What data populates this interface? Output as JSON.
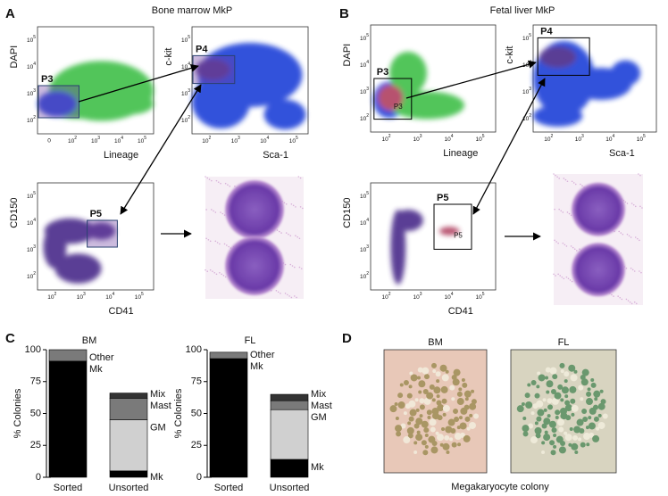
{
  "flow_panels": [
    {
      "letter": "A",
      "title": "Bone marrow MkP",
      "plots": [
        {
          "x_label": "Lineage",
          "y_label": "DAPI",
          "gate": "P3",
          "x_ticks": [
            {
              "text": "0"
            },
            {
              "base": "10",
              "exp": "2"
            },
            {
              "base": "10",
              "exp": "3"
            },
            {
              "base": "10",
              "exp": "4"
            },
            {
              "base": "10",
              "exp": "5"
            }
          ],
          "y_ticks": [
            {
              "base": "10",
              "exp": "2"
            },
            {
              "base": "10",
              "exp": "3"
            },
            {
              "base": "10",
              "exp": "4"
            },
            {
              "base": "10",
              "exp": "5"
            }
          ]
        },
        {
          "x_label": "Sca-1",
          "y_label": "c-kit",
          "gate": "P4",
          "x_ticks": [
            {
              "base": "10",
              "exp": "2"
            },
            {
              "base": "10",
              "exp": "3"
            },
            {
              "base": "10",
              "exp": "4"
            },
            {
              "base": "10",
              "exp": "5"
            }
          ],
          "y_ticks": [
            {
              "base": "10",
              "exp": "2"
            },
            {
              "base": "10",
              "exp": "3"
            },
            {
              "base": "10",
              "exp": "4"
            },
            {
              "base": "10",
              "exp": "5"
            }
          ]
        },
        {
          "x_label": "CD41",
          "y_label": "CD150",
          "gate": "P5",
          "x_ticks": [
            {
              "base": "10",
              "exp": "2"
            },
            {
              "base": "10",
              "exp": "3"
            },
            {
              "base": "10",
              "exp": "4"
            },
            {
              "base": "10",
              "exp": "5"
            }
          ],
          "y_ticks": [
            {
              "base": "10",
              "exp": "2"
            },
            {
              "base": "10",
              "exp": "3"
            },
            {
              "base": "10",
              "exp": "4"
            },
            {
              "base": "10",
              "exp": "5"
            }
          ]
        }
      ]
    },
    {
      "letter": "B",
      "title": "Fetal liver MkP",
      "plots": [
        {
          "x_label": "Lineage",
          "y_label": "DAPI",
          "gate": "P3",
          "inner_label": "P3",
          "x_ticks": [
            {
              "base": "10",
              "exp": "2"
            },
            {
              "base": "10",
              "exp": "3"
            },
            {
              "base": "10",
              "exp": "4"
            },
            {
              "base": "10",
              "exp": "5"
            }
          ],
          "y_ticks": [
            {
              "base": "10",
              "exp": "2"
            },
            {
              "base": "10",
              "exp": "3"
            },
            {
              "base": "10",
              "exp": "4"
            },
            {
              "base": "10",
              "exp": "5"
            }
          ]
        },
        {
          "x_label": "Sca-1",
          "y_label": "c-kit",
          "gate": "P4",
          "x_ticks": [
            {
              "base": "10",
              "exp": "2"
            },
            {
              "base": "10",
              "exp": "3"
            },
            {
              "base": "10",
              "exp": "4"
            },
            {
              "base": "10",
              "exp": "5"
            }
          ],
          "y_ticks": [
            {
              "base": "10",
              "exp": "2"
            },
            {
              "base": "10",
              "exp": "3"
            },
            {
              "base": "10",
              "exp": "4"
            },
            {
              "base": "10",
              "exp": "5"
            }
          ]
        },
        {
          "x_label": "CD41",
          "y_label": "CD150",
          "gate": "P5",
          "inner_label": "P5",
          "x_ticks": [
            {
              "base": "10",
              "exp": "2"
            },
            {
              "base": "10",
              "exp": "3"
            },
            {
              "base": "10",
              "exp": "4"
            },
            {
              "base": "10",
              "exp": "5"
            }
          ],
          "y_ticks": [
            {
              "base": "10",
              "exp": "2"
            },
            {
              "base": "10",
              "exp": "3"
            },
            {
              "base": "10",
              "exp": "4"
            },
            {
              "base": "10",
              "exp": "5"
            }
          ]
        }
      ]
    }
  ],
  "panel_c_letter": "C",
  "chart_data": [
    {
      "type": "bar",
      "stacked": true,
      "title": "BM",
      "ylabel": "% Colonies",
      "categories": [
        "Sorted",
        "Unsorted"
      ],
      "series": [
        {
          "name": "Mk",
          "color": "#000000",
          "values": [
            91,
            5
          ]
        },
        {
          "name": "GM",
          "color": "#d0d0d0",
          "values": [
            null,
            40
          ]
        },
        {
          "name": "Mast",
          "color": "#7a7a7a",
          "values": [
            null,
            17
          ]
        },
        {
          "name": "Mix",
          "color": "#333333",
          "values": [
            null,
            4
          ]
        },
        {
          "name": "Other",
          "color": "#7a7a7a",
          "values": [
            9,
            null
          ]
        }
      ],
      "ylim": [
        0,
        100
      ],
      "yticks": [
        0,
        25,
        50,
        75,
        100
      ]
    },
    {
      "type": "bar",
      "stacked": true,
      "title": "FL",
      "ylabel": "% Colonies",
      "categories": [
        "Sorted",
        "Unsorted"
      ],
      "series": [
        {
          "name": "Mk",
          "color": "#000000",
          "values": [
            93,
            14
          ]
        },
        {
          "name": "GM",
          "color": "#d0d0d0",
          "values": [
            null,
            39
          ]
        },
        {
          "name": "Mast",
          "color": "#7a7a7a",
          "values": [
            null,
            7
          ]
        },
        {
          "name": "Mix",
          "color": "#333333",
          "values": [
            null,
            5
          ]
        },
        {
          "name": "Other",
          "color": "#7a7a7a",
          "values": [
            5,
            null
          ]
        }
      ],
      "ylim": [
        0,
        100
      ],
      "yticks": [
        0,
        25,
        50,
        75,
        100
      ]
    }
  ],
  "panel_d": {
    "letter": "D",
    "images": [
      {
        "label": "BM"
      },
      {
        "label": "FL"
      }
    ],
    "caption": "Megakaryocyte colony"
  }
}
